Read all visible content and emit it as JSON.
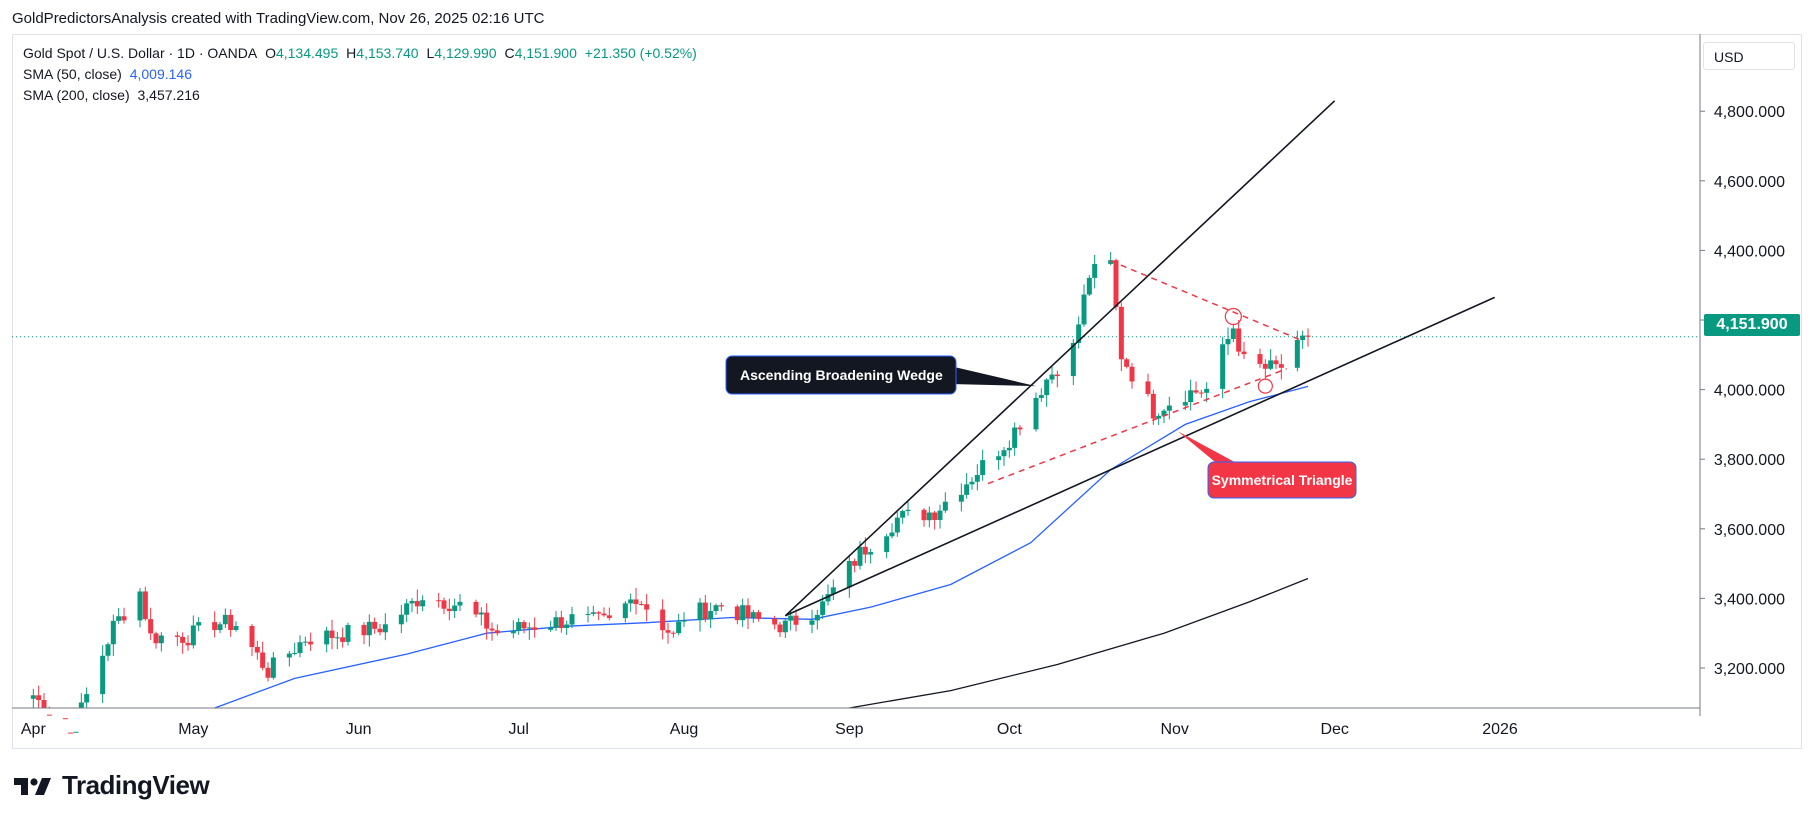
{
  "header": {
    "caption": "GoldPredictorsAnalysis created with TradingView.com, Nov 26, 2025 02:16 UTC"
  },
  "legend": {
    "symbol": "Gold Spot / U.S. Dollar · 1D · OANDA",
    "open_label": "O",
    "open": "4,134.495",
    "high_label": "H",
    "high": "4,153.740",
    "low_label": "L",
    "low": "4,129.990",
    "close_label": "C",
    "close": "4,151.900",
    "change": "+21.350 (+0.52%)",
    "sma50_label": "SMA (50, close)",
    "sma50_value": "4,009.146",
    "sma200_label": "SMA (200, close)",
    "sma200_value": "3,457.216"
  },
  "price_axis": {
    "currency": "USD",
    "last_price": "4,151.900"
  },
  "brand": {
    "name": "TradingView"
  },
  "colors": {
    "up": "#089981",
    "down": "#f23645",
    "sma50": "#2962ff",
    "sma200": "#131722",
    "pattern_triangle": "#f23645",
    "wedge_lines": "#131722",
    "callout_dark": "#131722",
    "callout_red": "#f23645"
  },
  "chart_data": {
    "type": "candlestick",
    "title": "Gold Spot / U.S. Dollar · 1D · OANDA",
    "x_axis": {
      "ticks": [
        "Apr",
        "May",
        "Jun",
        "Jul",
        "Aug",
        "Sep",
        "Oct",
        "Nov",
        "Dec",
        "2026"
      ],
      "range": [
        "2025-03-28",
        "2026-01-31"
      ]
    },
    "y_axis": {
      "ticks": [
        3200,
        3400,
        3600,
        3800,
        4000,
        4200,
        4400,
        4600,
        4800
      ],
      "tick_labels": [
        "3,200.000",
        "3,400.000",
        "3,600.000",
        "3,800.000",
        "4,000.000",
        "4,200.000",
        "4,400.000",
        "4,600.000",
        "4,800.000"
      ],
      "ylim": [
        3085,
        4930
      ],
      "position": "right"
    },
    "last_price": 4151.9,
    "close_path": [
      {
        "date": "2025-04-01",
        "close": 3122
      },
      {
        "date": "2025-04-08",
        "close": 3000
      },
      {
        "date": "2025-04-16",
        "close": 3320
      },
      {
        "date": "2025-04-21",
        "close": 3420
      },
      {
        "date": "2025-04-23",
        "close": 3290
      },
      {
        "date": "2025-04-30",
        "close": 3290
      },
      {
        "date": "2025-05-05",
        "close": 3330
      },
      {
        "date": "2025-05-09",
        "close": 3325
      },
      {
        "date": "2025-05-15",
        "close": 3190
      },
      {
        "date": "2025-05-22",
        "close": 3285
      },
      {
        "date": "2025-05-30",
        "close": 3300
      },
      {
        "date": "2025-06-06",
        "close": 3320
      },
      {
        "date": "2025-06-13",
        "close": 3410
      },
      {
        "date": "2025-06-20",
        "close": 3380
      },
      {
        "date": "2025-06-27",
        "close": 3300
      },
      {
        "date": "2025-07-03",
        "close": 3320
      },
      {
        "date": "2025-07-11",
        "close": 3340
      },
      {
        "date": "2025-07-18",
        "close": 3330
      },
      {
        "date": "2025-07-23",
        "close": 3410
      },
      {
        "date": "2025-07-30",
        "close": 3290
      },
      {
        "date": "2025-08-01",
        "close": 3350
      },
      {
        "date": "2025-08-08",
        "close": 3380
      },
      {
        "date": "2025-08-14",
        "close": 3340
      },
      {
        "date": "2025-08-20",
        "close": 3320
      },
      {
        "date": "2025-08-27",
        "close": 3380
      },
      {
        "date": "2025-09-03",
        "close": 3530
      },
      {
        "date": "2025-09-10",
        "close": 3630
      },
      {
        "date": "2025-09-17",
        "close": 3650
      },
      {
        "date": "2025-09-24",
        "close": 3750
      },
      {
        "date": "2025-10-01",
        "close": 3860
      },
      {
        "date": "2025-10-08",
        "close": 4030
      },
      {
        "date": "2025-10-13",
        "close": 4120
      },
      {
        "date": "2025-10-16",
        "close": 4330
      },
      {
        "date": "2025-10-20",
        "close": 4360
      },
      {
        "date": "2025-10-22",
        "close": 4100
      },
      {
        "date": "2025-10-28",
        "close": 3940
      },
      {
        "date": "2025-11-03",
        "close": 3990
      },
      {
        "date": "2025-11-07",
        "close": 4000
      },
      {
        "date": "2025-11-12",
        "close": 4180
      },
      {
        "date": "2025-11-14",
        "close": 4080
      },
      {
        "date": "2025-11-18",
        "close": 4060
      },
      {
        "date": "2025-11-21",
        "close": 4065
      },
      {
        "date": "2025-11-25",
        "close": 4134
      },
      {
        "date": "2025-11-26",
        "close": 4151.9
      }
    ],
    "sma50": [
      {
        "date": "2025-05-05",
        "value": 3085
      },
      {
        "date": "2025-05-20",
        "value": 3170
      },
      {
        "date": "2025-06-10",
        "value": 3240
      },
      {
        "date": "2025-06-25",
        "value": 3300
      },
      {
        "date": "2025-07-10",
        "value": 3320
      },
      {
        "date": "2025-07-25",
        "value": 3330
      },
      {
        "date": "2025-08-10",
        "value": 3345
      },
      {
        "date": "2025-08-25",
        "value": 3340
      },
      {
        "date": "2025-09-05",
        "value": 3375
      },
      {
        "date": "2025-09-20",
        "value": 3440
      },
      {
        "date": "2025-10-05",
        "value": 3560
      },
      {
        "date": "2025-10-20",
        "value": 3770
      },
      {
        "date": "2025-11-03",
        "value": 3900
      },
      {
        "date": "2025-11-15",
        "value": 3965
      },
      {
        "date": "2025-11-26",
        "value": 4009.146
      }
    ],
    "sma200": [
      {
        "date": "2025-09-01",
        "value": 3085
      },
      {
        "date": "2025-09-20",
        "value": 3135
      },
      {
        "date": "2025-10-10",
        "value": 3210
      },
      {
        "date": "2025-10-30",
        "value": 3300
      },
      {
        "date": "2025-11-15",
        "value": 3390
      },
      {
        "date": "2025-11-26",
        "value": 3457.216
      }
    ],
    "annotations": [
      {
        "text": "Ascending Broadening Wedge",
        "style": "dark-callout",
        "points": [
          {
            "date": "2025-08-20",
            "price": 3350
          },
          {
            "date": "2025-12-01",
            "price": 4830
          },
          {
            "date": "2025-08-20",
            "price": 3350
          },
          {
            "date": "2025-12-31",
            "price": 4265
          }
        ]
      },
      {
        "text": "Symmetrical Triangle",
        "style": "red-callout",
        "points": [
          {
            "date": "2025-10-20",
            "price": 4370
          },
          {
            "date": "2025-11-25",
            "price": 4140
          },
          {
            "date": "2025-09-27",
            "price": 3730
          },
          {
            "date": "2025-11-22",
            "price": 4060
          }
        ]
      }
    ]
  }
}
